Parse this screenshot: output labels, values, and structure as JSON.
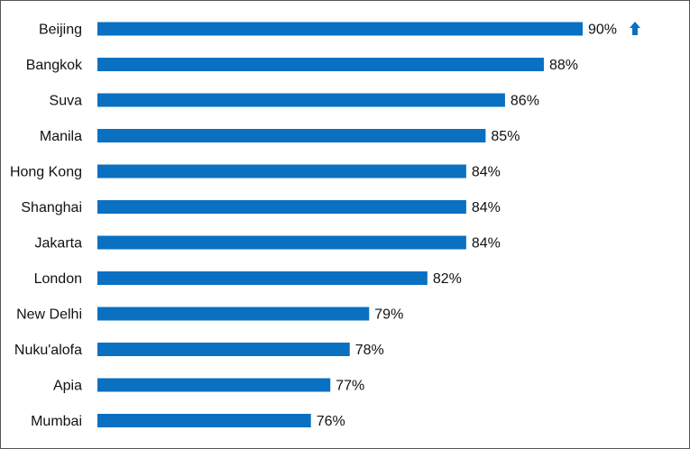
{
  "chart_data": {
    "type": "bar",
    "orientation": "horizontal",
    "categories": [
      "Beijing",
      "Bangkok",
      "Suva",
      "Manila",
      "Hong Kong",
      "Shanghai",
      "Jakarta",
      "London",
      "New Delhi",
      "Nuku'alofa",
      "Apia",
      "Mumbai"
    ],
    "values": [
      90,
      88,
      86,
      85,
      84,
      84,
      84,
      82,
      79,
      78,
      77,
      76
    ],
    "value_labels": [
      "90%",
      "88%",
      "86%",
      "85%",
      "84%",
      "84%",
      "84%",
      "82%",
      "79%",
      "78%",
      "77%",
      "76%"
    ],
    "unit": "%",
    "xlim": [
      65,
      90
    ],
    "grid": false,
    "legend": "none",
    "bar_color": "#0a70c2",
    "annotations": [
      {
        "category": "Beijing",
        "icon": "up-arrow-icon",
        "color": "#0a70c2"
      }
    ]
  }
}
